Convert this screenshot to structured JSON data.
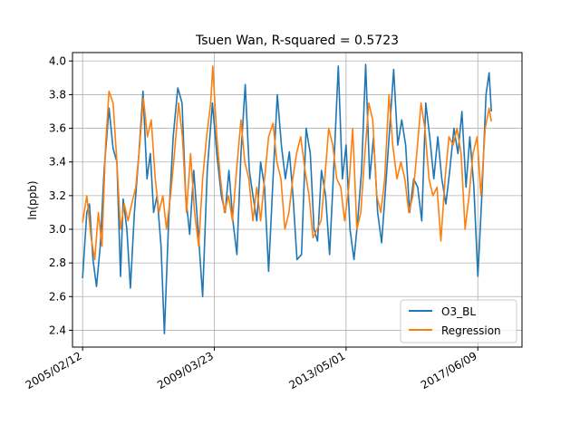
{
  "chart_data": {
    "type": "line",
    "title": "Tsuen Wan, R-squared = 0.5723",
    "xlabel": "",
    "ylabel": "ln(ppb)",
    "ylim": [
      2.3,
      4.05
    ],
    "xlim": [
      "2004-10-20",
      "2018-10-25"
    ],
    "yticks": [
      "2.4",
      "2.6",
      "2.8",
      "3.0",
      "3.2",
      "3.4",
      "3.6",
      "3.8",
      "4.0"
    ],
    "xticks": [
      "2005/02/12",
      "2009/03/23",
      "2013/05/01",
      "2017/06/09"
    ],
    "grid": true,
    "legend": "lower-right",
    "colors": {
      "O3_BL": "#1f77b4",
      "Regression": "#ff7f0e"
    },
    "series": [
      {
        "name": "O3_BL",
        "points": [
          [
            "2005-02-12",
            2.71
          ],
          [
            "2005-04-01",
            3.1
          ],
          [
            "2005-05-01",
            3.15
          ],
          [
            "2005-06-10",
            2.82
          ],
          [
            "2005-07-20",
            2.66
          ],
          [
            "2005-09-01",
            2.9
          ],
          [
            "2005-10-15",
            3.35
          ],
          [
            "2005-12-10",
            3.72
          ],
          [
            "2006-01-25",
            3.48
          ],
          [
            "2006-03-10",
            3.4
          ],
          [
            "2006-04-20",
            2.72
          ],
          [
            "2006-05-20",
            3.18
          ],
          [
            "2006-07-01",
            3.0
          ],
          [
            "2006-08-10",
            2.65
          ],
          [
            "2006-09-25",
            3.1
          ],
          [
            "2006-11-15",
            3.45
          ],
          [
            "2007-01-01",
            3.82
          ],
          [
            "2007-02-15",
            3.3
          ],
          [
            "2007-03-25",
            3.45
          ],
          [
            "2007-05-01",
            3.1
          ],
          [
            "2007-06-10",
            3.2
          ],
          [
            "2007-07-25",
            2.9
          ],
          [
            "2007-09-01",
            2.38
          ],
          [
            "2007-10-20",
            3.05
          ],
          [
            "2007-12-10",
            3.55
          ],
          [
            "2008-02-01",
            3.84
          ],
          [
            "2008-03-20",
            3.75
          ],
          [
            "2008-05-01",
            3.2
          ],
          [
            "2008-06-15",
            2.97
          ],
          [
            "2008-08-01",
            3.35
          ],
          [
            "2008-09-25",
            2.95
          ],
          [
            "2008-11-10",
            2.6
          ],
          [
            "2009-01-01",
            3.35
          ],
          [
            "2009-03-01",
            3.75
          ],
          [
            "2009-04-20",
            3.45
          ],
          [
            "2009-06-10",
            3.2
          ],
          [
            "2009-07-25",
            3.1
          ],
          [
            "2009-09-05",
            3.35
          ],
          [
            "2009-10-20",
            3.05
          ],
          [
            "2009-12-05",
            2.85
          ],
          [
            "2010-01-20",
            3.45
          ],
          [
            "2010-03-10",
            3.86
          ],
          [
            "2010-04-25",
            3.35
          ],
          [
            "2010-06-05",
            3.2
          ],
          [
            "2010-07-20",
            3.05
          ],
          [
            "2010-09-01",
            3.4
          ],
          [
            "2010-10-15",
            3.25
          ],
          [
            "2010-12-01",
            2.75
          ],
          [
            "2011-01-20",
            3.3
          ],
          [
            "2011-03-10",
            3.8
          ],
          [
            "2011-04-25",
            3.5
          ],
          [
            "2011-06-10",
            3.3
          ],
          [
            "2011-07-25",
            3.46
          ],
          [
            "2011-09-05",
            3.2
          ],
          [
            "2011-10-20",
            2.82
          ],
          [
            "2011-12-10",
            2.85
          ],
          [
            "2012-02-01",
            3.6
          ],
          [
            "2012-03-20",
            3.45
          ],
          [
            "2012-05-01",
            3.0
          ],
          [
            "2012-06-10",
            2.93
          ],
          [
            "2012-07-25",
            3.35
          ],
          [
            "2012-09-10",
            3.2
          ],
          [
            "2012-10-25",
            2.85
          ],
          [
            "2012-12-15",
            3.4
          ],
          [
            "2013-02-01",
            3.97
          ],
          [
            "2013-03-20",
            3.3
          ],
          [
            "2013-05-01",
            3.5
          ],
          [
            "2013-06-15",
            3.0
          ],
          [
            "2013-07-30",
            2.82
          ],
          [
            "2013-09-10",
            3.05
          ],
          [
            "2013-10-25",
            3.35
          ],
          [
            "2013-12-10",
            3.98
          ],
          [
            "2014-01-25",
            3.3
          ],
          [
            "2014-03-10",
            3.55
          ],
          [
            "2014-04-25",
            3.1
          ],
          [
            "2014-06-10",
            2.92
          ],
          [
            "2014-07-25",
            3.25
          ],
          [
            "2014-09-10",
            3.6
          ],
          [
            "2014-10-25",
            3.95
          ],
          [
            "2014-12-10",
            3.5
          ],
          [
            "2015-01-25",
            3.65
          ],
          [
            "2015-03-10",
            3.5
          ],
          [
            "2015-04-25",
            3.1
          ],
          [
            "2015-06-10",
            3.3
          ],
          [
            "2015-07-25",
            3.25
          ],
          [
            "2015-09-10",
            3.05
          ],
          [
            "2015-10-25",
            3.75
          ],
          [
            "2015-12-10",
            3.55
          ],
          [
            "2016-01-25",
            3.3
          ],
          [
            "2016-03-10",
            3.55
          ],
          [
            "2016-04-25",
            3.3
          ],
          [
            "2016-06-10",
            3.15
          ],
          [
            "2016-07-25",
            3.35
          ],
          [
            "2016-09-10",
            3.6
          ],
          [
            "2016-10-25",
            3.45
          ],
          [
            "2016-12-10",
            3.7
          ],
          [
            "2017-01-25",
            3.25
          ],
          [
            "2017-03-10",
            3.55
          ],
          [
            "2017-04-25",
            3.25
          ],
          [
            "2017-06-10",
            2.72
          ],
          [
            "2017-07-25",
            3.2
          ],
          [
            "2017-09-10",
            3.8
          ],
          [
            "2017-10-15",
            3.93
          ],
          [
            "2017-11-10",
            3.7
          ]
        ]
      },
      {
        "name": "Regression",
        "points": [
          [
            "2005-02-12",
            3.04
          ],
          [
            "2005-04-01",
            3.2
          ],
          [
            "2005-05-20",
            2.95
          ],
          [
            "2005-07-01",
            2.82
          ],
          [
            "2005-08-10",
            3.1
          ],
          [
            "2005-09-20",
            2.9
          ],
          [
            "2005-11-01",
            3.5
          ],
          [
            "2005-12-10",
            3.82
          ],
          [
            "2006-01-25",
            3.75
          ],
          [
            "2006-03-10",
            3.4
          ],
          [
            "2006-04-20",
            3.0
          ],
          [
            "2006-06-01",
            3.15
          ],
          [
            "2006-07-15",
            3.05
          ],
          [
            "2006-08-25",
            3.15
          ],
          [
            "2006-10-10",
            3.25
          ],
          [
            "2006-11-25",
            3.5
          ],
          [
            "2007-01-05",
            3.78
          ],
          [
            "2007-02-20",
            3.55
          ],
          [
            "2007-04-05",
            3.65
          ],
          [
            "2007-05-20",
            3.3
          ],
          [
            "2007-07-01",
            3.1
          ],
          [
            "2007-08-15",
            3.2
          ],
          [
            "2007-09-25",
            3.0
          ],
          [
            "2007-11-10",
            3.2
          ],
          [
            "2007-12-25",
            3.45
          ],
          [
            "2008-02-10",
            3.75
          ],
          [
            "2008-03-25",
            3.55
          ],
          [
            "2008-05-10",
            3.1
          ],
          [
            "2008-06-25",
            3.45
          ],
          [
            "2008-08-10",
            3.1
          ],
          [
            "2008-09-25",
            2.9
          ],
          [
            "2008-11-10",
            3.3
          ],
          [
            "2008-12-25",
            3.55
          ],
          [
            "2009-02-10",
            3.75
          ],
          [
            "2009-03-05",
            3.97
          ],
          [
            "2009-04-20",
            3.55
          ],
          [
            "2009-06-01",
            3.3
          ],
          [
            "2009-07-15",
            3.1
          ],
          [
            "2009-09-01",
            3.2
          ],
          [
            "2009-10-15",
            3.05
          ],
          [
            "2009-12-01",
            3.35
          ],
          [
            "2010-01-20",
            3.65
          ],
          [
            "2010-03-05",
            3.4
          ],
          [
            "2010-04-20",
            3.3
          ],
          [
            "2010-06-05",
            3.05
          ],
          [
            "2010-07-20",
            3.25
          ],
          [
            "2010-09-01",
            3.05
          ],
          [
            "2010-10-15",
            3.3
          ],
          [
            "2010-12-01",
            3.55
          ],
          [
            "2011-01-20",
            3.63
          ],
          [
            "2011-03-05",
            3.4
          ],
          [
            "2011-04-20",
            3.3
          ],
          [
            "2011-06-05",
            3.0
          ],
          [
            "2011-07-20",
            3.1
          ],
          [
            "2011-09-01",
            3.3
          ],
          [
            "2011-10-15",
            3.45
          ],
          [
            "2011-12-01",
            3.55
          ],
          [
            "2012-01-20",
            3.35
          ],
          [
            "2012-03-05",
            3.2
          ],
          [
            "2012-04-20",
            2.95
          ],
          [
            "2012-06-05",
            3.0
          ],
          [
            "2012-07-20",
            3.05
          ],
          [
            "2012-09-01",
            3.3
          ],
          [
            "2012-10-15",
            3.6
          ],
          [
            "2012-12-01",
            3.5
          ],
          [
            "2013-01-15",
            3.3
          ],
          [
            "2013-03-01",
            3.25
          ],
          [
            "2013-04-15",
            3.05
          ],
          [
            "2013-06-01",
            3.25
          ],
          [
            "2013-07-15",
            3.6
          ],
          [
            "2013-09-01",
            3.0
          ],
          [
            "2013-10-15",
            3.1
          ],
          [
            "2013-12-01",
            3.45
          ],
          [
            "2014-01-15",
            3.75
          ],
          [
            "2014-03-01",
            3.65
          ],
          [
            "2014-04-15",
            3.2
          ],
          [
            "2014-06-01",
            3.1
          ],
          [
            "2014-07-15",
            3.3
          ],
          [
            "2014-09-01",
            3.8
          ],
          [
            "2014-10-15",
            3.5
          ],
          [
            "2014-12-01",
            3.3
          ],
          [
            "2015-01-15",
            3.4
          ],
          [
            "2015-03-01",
            3.3
          ],
          [
            "2015-04-15",
            3.1
          ],
          [
            "2015-06-01",
            3.2
          ],
          [
            "2015-07-15",
            3.45
          ],
          [
            "2015-09-01",
            3.75
          ],
          [
            "2015-10-15",
            3.6
          ],
          [
            "2015-12-01",
            3.3
          ],
          [
            "2016-01-15",
            3.2
          ],
          [
            "2016-03-01",
            3.25
          ],
          [
            "2016-04-15",
            2.93
          ],
          [
            "2016-06-01",
            3.3
          ],
          [
            "2016-07-15",
            3.55
          ],
          [
            "2016-09-01",
            3.5
          ],
          [
            "2016-10-15",
            3.6
          ],
          [
            "2016-12-01",
            3.45
          ],
          [
            "2017-01-15",
            3.0
          ],
          [
            "2017-03-01",
            3.2
          ],
          [
            "2017-04-15",
            3.45
          ],
          [
            "2017-06-01",
            3.55
          ],
          [
            "2017-07-15",
            3.2
          ],
          [
            "2017-09-01",
            3.6
          ],
          [
            "2017-10-15",
            3.72
          ],
          [
            "2017-11-10",
            3.64
          ]
        ]
      }
    ]
  }
}
